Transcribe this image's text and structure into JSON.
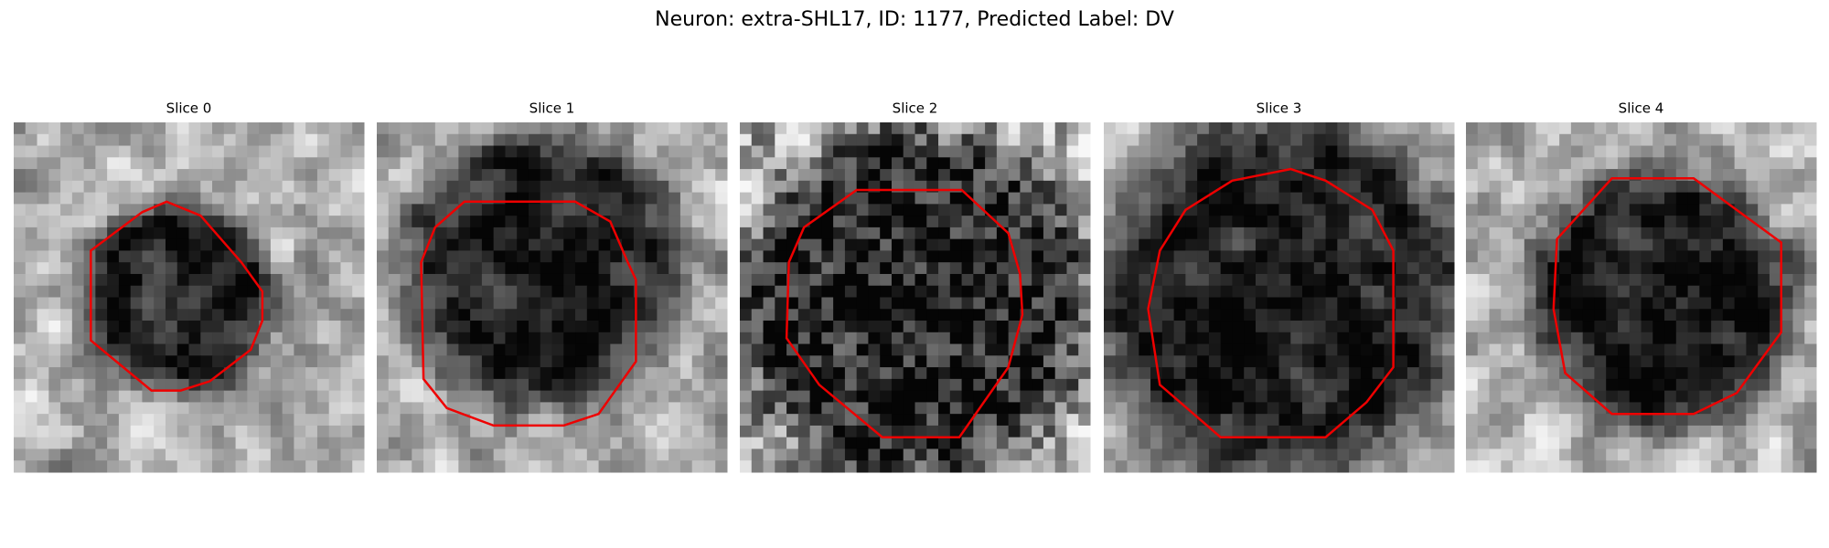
{
  "title": "Neuron: extra-SHL17, ID: 1177, Predicted Label: DV",
  "panels": [
    {
      "title": "Slice 0"
    },
    {
      "title": "Slice 1"
    },
    {
      "title": "Slice 2"
    },
    {
      "title": "Slice 3"
    },
    {
      "title": "Slice 4"
    }
  ]
}
